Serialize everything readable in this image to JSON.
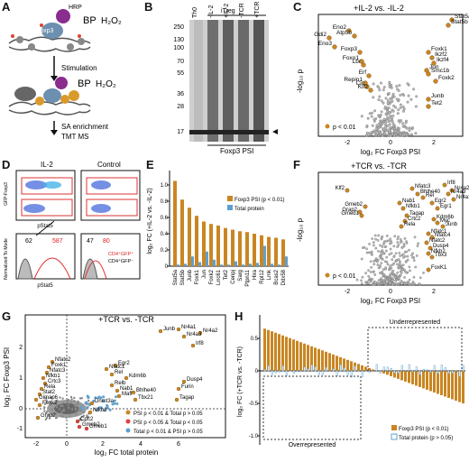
{
  "panels": {
    "A": {
      "letter": "A",
      "labels": {
        "foxp3": "Foxp3",
        "hrp": "HRP",
        "bp": "BP",
        "h2o2": "H₂O₂",
        "stimulation": "Stimulation",
        "bp2": "BP",
        "h2o2_2": "H₂O₂",
        "sa_enrichment": "SA enrichment",
        "tmt_ms": "TMT MS"
      }
    },
    "B": {
      "letter": "B",
      "lanes": [
        "Th0",
        "-IL-2",
        "+IL-2",
        "-TCR",
        "+TCR"
      ],
      "group_label": "iTreg",
      "markers": [
        "250",
        "130",
        "100",
        "70",
        "55",
        "36",
        "28",
        "17"
      ],
      "bottom_label": "Foxp3 PSI"
    },
    "C": {
      "letter": "C",
      "title": "+IL-2 vs. -IL-2",
      "xlabel": "log₂ FC Foxp3 PSI",
      "ylabel": "-log₁₀ p",
      "x_ticks": [
        "-2",
        "0",
        "2"
      ],
      "legend": "p < 0.01",
      "genes": [
        "Gdi2",
        "Eno2",
        "Atp5b",
        "Eno3",
        "Foxp3",
        "Foxo1",
        "Lbr",
        "Erf",
        "Repin1",
        "Cic",
        "Klf2",
        "Stat5a",
        "Stat5b",
        "Foxk1",
        "Ikzf2",
        "Ikzf4",
        "Jun",
        "Smc1b",
        "Foxk2",
        "Junb",
        "Tet2"
      ]
    },
    "D": {
      "letter": "D",
      "col1": "IL-2",
      "col2": "Control",
      "ylabel_top": "GFP-Foxp3",
      "ylabel_bottom": "Normalized To Mode",
      "xlabel": "pStat5",
      "numbers_left": [
        "62",
        "587"
      ],
      "numbers_right": [
        "47",
        "80"
      ],
      "legend1": "CD4⁺GFP⁺",
      "legend2": "CD4⁺GFP⁻"
    },
    "E": {
      "letter": "E",
      "ylabel": "log₂ FC (+IL-2 vs. -IL-2)",
      "y_ticks": [
        "0",
        "0.2",
        "0.4",
        "0.6",
        "0.8",
        "1.0"
      ],
      "legend1": "Foxp3 PSI (p < 0.01)",
      "legend2": "Total protein",
      "genes": [
        "Stat5a",
        "Stat5b",
        "Junb",
        "Foxk1",
        "Jun",
        "Foxk2",
        "Lrrc61",
        "Tet2",
        "Cenpj",
        "Sarg",
        "Ptpn11",
        "Hira",
        "Rpl12",
        "Lmk",
        "Bcas2",
        "Ddx58"
      ]
    },
    "F": {
      "letter": "F",
      "title": "+TCR vs. -TCR",
      "xlabel": "log₂ FC Foxp3 PSI",
      "ylabel": "-log₁₀ p",
      "x_ticks": [
        "-2",
        "0",
        "2"
      ],
      "legend": "p < 0.01",
      "genes": [
        "Klf2",
        "Gmeb2",
        "Grap2",
        "Gmeb1",
        "Nab1",
        "Nfkb1",
        "Tagap",
        "Crtc2",
        "Rela",
        "Nfatc3",
        "Bhlhe40",
        "Rel",
        "Egr2",
        "Egr1",
        "Irf8",
        "Nr4a2",
        "Nr4a3",
        "Nr4a1",
        "Kdm6b",
        "Myc",
        "Junb",
        "Nfatc1",
        "Nfatc4",
        "Nfatc2",
        "Dusp4",
        "Nfkb2",
        "Tbx3",
        "FoxK1"
      ]
    },
    "G": {
      "letter": "G",
      "title": "+TCR vs. -TCR",
      "xlabel": "log₂ FC total protein",
      "ylabel": "log₂ FC Foxp3 PSI",
      "x_ticks": [
        "-2",
        "0",
        "2",
        "4",
        "6"
      ],
      "y_ticks": [
        "-1",
        "0",
        "1",
        "2"
      ],
      "legend": [
        "PSI p < 0.01 & Total p > 0.05",
        "PSI p < 0.05 & Total p < 0.05",
        "Total p < 0.01 & PSI p > 0.05"
      ],
      "genes": [
        "Junb",
        "Nr4a1",
        "Nr4a3",
        "Nr4a2",
        "Irf8",
        "Nfatc2",
        "Foxk1",
        "Nfatc3",
        "Nfkb1",
        "Crtc3",
        "Rela",
        "Stat2",
        "Gimap6",
        "Foxk2",
        "Grap2",
        "Nfatc1",
        "Rel",
        "Egr2",
        "Relb",
        "Kdm6b",
        "Nab1",
        "Maff",
        "Bhlhe40",
        "Tbx21",
        "Dusp4",
        "Furin",
        "Tagap",
        "Dnmt3a",
        "Crtc2",
        "Gmeb2",
        "Gmeb1",
        "Nfkb2"
      ]
    },
    "H": {
      "letter": "H",
      "ylabel": "log₂ FC (+TCR vs. -TCR)",
      "y_ticks": [
        "-1.0",
        "-0.5",
        "0",
        "0.5",
        "1.0"
      ],
      "underrepresented": "Underrepresented",
      "overrepresented": "Overrepresented",
      "legend1": "Foxp3 PSI (p < 0.01)",
      "legend2": "Total protein (p > 0.05)"
    }
  }
}
